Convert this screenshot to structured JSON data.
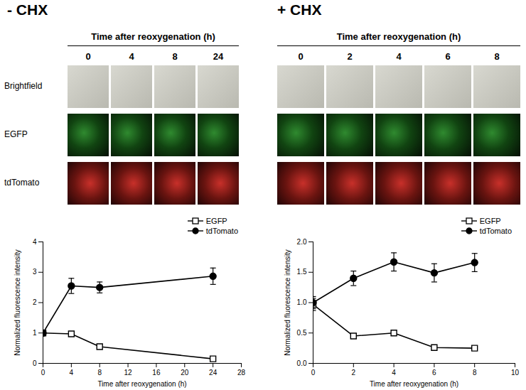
{
  "panels": [
    {
      "title": "- CHX",
      "header": "Time after reoxygenation (h)",
      "times": [
        0,
        4,
        8,
        24
      ],
      "rows": [
        "Brightfield",
        "EGFP",
        "tdTomato"
      ]
    },
    {
      "title": "+ CHX",
      "header": "Time after reoxygenation (h)",
      "times": [
        0,
        2,
        4,
        6,
        8
      ]
    }
  ],
  "chart_data": [
    {
      "type": "line",
      "xlabel": "Time after reoxygenation (h)",
      "ylabel": "Normalized fluorescence intensity",
      "x": [
        0,
        4,
        8,
        24
      ],
      "xlim": [
        0,
        28
      ],
      "xticks": [
        0,
        4,
        8,
        12,
        16,
        20,
        24,
        28
      ],
      "ylim": [
        0,
        4
      ],
      "yticks": [
        0,
        1,
        2,
        3,
        4
      ],
      "legend": "top-right",
      "series": [
        {
          "name": "EGFP",
          "color": "#000000",
          "marker": "square-open",
          "values": [
            1,
            0.97,
            0.55,
            0.15
          ],
          "errors": [
            0.02,
            0.04,
            0.04,
            0.04
          ]
        },
        {
          "name": "tdTomato",
          "color": "#000000",
          "marker": "circle",
          "values": [
            1,
            2.55,
            2.5,
            2.87
          ],
          "errors": [
            0.02,
            0.25,
            0.18,
            0.27
          ]
        }
      ]
    },
    {
      "type": "line",
      "xlabel": "Time after reoxygenation (h)",
      "ylabel": "Normalized fluorescence intensity",
      "x": [
        0,
        2,
        4,
        6,
        8
      ],
      "xlim": [
        0,
        10
      ],
      "xticks": [
        0,
        2,
        4,
        6,
        8,
        10
      ],
      "ylim": [
        0,
        2
      ],
      "yticks": [
        {
          "value": 0,
          "label": "0.0"
        },
        {
          "value": 0.5,
          "label": "0.5"
        },
        {
          "value": 1,
          "label": "1.0"
        },
        {
          "value": 1.5,
          "label": "1.5"
        },
        {
          "value": 2,
          "label": "2.0"
        }
      ],
      "legend": "top-right",
      "series": [
        {
          "name": "EGFP",
          "color": "#000000",
          "marker": "square-open",
          "values": [
            0.97,
            0.45,
            0.5,
            0.26,
            0.25
          ],
          "errors": [
            0.1,
            0.03,
            0.03,
            0.02,
            0.02
          ]
        },
        {
          "name": "tdTomato",
          "color": "#000000",
          "marker": "circle",
          "values": [
            1.0,
            1.4,
            1.67,
            1.49,
            1.66
          ],
          "errors": [
            0.1,
            0.12,
            0.15,
            0.15,
            0.15
          ]
        }
      ]
    }
  ]
}
